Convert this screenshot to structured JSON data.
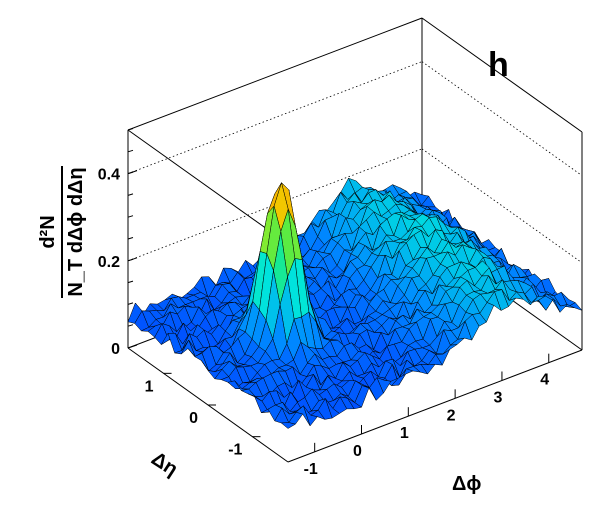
{
  "chart_data": {
    "type": "surface",
    "panel_label": "h",
    "zlabel_numerator": "d²N",
    "zlabel_denominator": "N_T dΔϕ dΔη",
    "xlabel": "Δϕ",
    "ylabel": "Δη",
    "xlim": [
      -1.57,
      4.71
    ],
    "ylim": [
      -1.8,
      1.8
    ],
    "zlim": [
      0,
      0.5
    ],
    "x_ticks": [
      -1,
      0,
      1,
      2,
      3,
      4
    ],
    "y_ticks": [
      -1,
      0,
      1
    ],
    "z_ticks": [
      0,
      0.2,
      0.4
    ],
    "z_tick_labels": [
      "0",
      "0.2",
      "0.4"
    ],
    "grid": "dotted back-wall lines at z ticks",
    "color_scale": "rainbow (blue = low, red = high)",
    "components": {
      "baseline": 0.08,
      "near_side_peak": {
        "dphi": 0,
        "deta": 0,
        "height": 0.38,
        "sigma_dphi": 0.3,
        "sigma_deta": 0.28
      },
      "away_side_ridge": {
        "dphi": 3.14,
        "height": 0.13,
        "sigma_dphi": 0.75,
        "deta_extent": "broad"
      }
    }
  }
}
